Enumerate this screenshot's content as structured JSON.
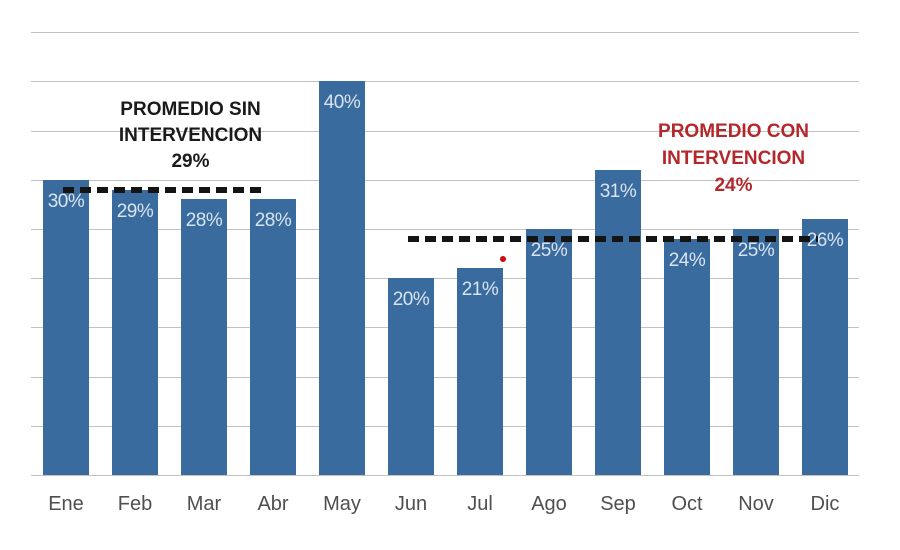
{
  "chart_data": {
    "type": "bar",
    "categories": [
      "Ene",
      "Feb",
      "Mar",
      "Abr",
      "May",
      "Jun",
      "Jul",
      "Ago",
      "Sep",
      "Oct",
      "Nov",
      "Dic"
    ],
    "values": [
      30,
      29,
      28,
      28,
      40,
      20,
      21,
      25,
      31,
      24,
      25,
      26
    ],
    "bar_value_labels": [
      "30%",
      "29%",
      "28%",
      "28%",
      "40%",
      "20%",
      "21%",
      "25%",
      "31%",
      "24%",
      "25%",
      "26%"
    ],
    "ylim": [
      0,
      45
    ],
    "gridline_step_pct": 5,
    "grid": true,
    "y_axis_tick_labels_visible": false,
    "colors": {
      "bar": "#3A6B9E",
      "bar_label": "#D8E4F0",
      "gridline": "#C2C2C2",
      "x_tick_label": "#4F4F4F",
      "avg_line": "#141414"
    },
    "annotations": [
      {
        "id": "promedio-sin-intervencion",
        "lines": [
          "PROMEDIO SIN",
          "INTERVENCION",
          "29%"
        ],
        "color": "#1A1A1A",
        "avg_value_pct": 29
      },
      {
        "id": "promedio-con-intervencion",
        "lines": [
          "PROMEDIO CON",
          "INTERVENCION",
          "24%"
        ],
        "color": "#B4282C",
        "avg_value_pct": 24
      }
    ],
    "marks": {
      "red_dot_color": "#D40808"
    }
  }
}
